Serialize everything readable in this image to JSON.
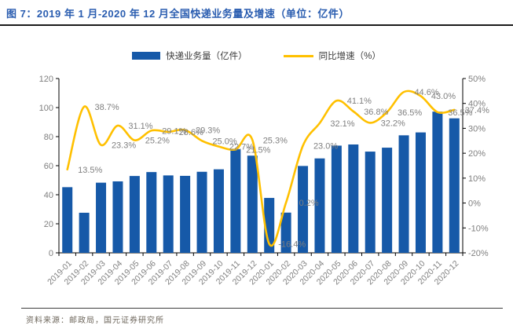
{
  "header": {
    "title": "图 7：2019 年 1 月-2020 年 12 月全国快递业务量及增速（单位：亿件）"
  },
  "legend": {
    "bar_label": "快递业务量（亿件）",
    "line_label": "同比增速（%）"
  },
  "footer": {
    "source": "资料来源：邮政局，国元证券研究所"
  },
  "colors": {
    "bar": "#1659a8",
    "line": "#ffc000",
    "title_text": "#2a5db0",
    "axis_line": "#000000",
    "tick_label": "#7f7f7f",
    "data_label": "#7f7f7f",
    "legend_text": "#3a3a3a"
  },
  "chart_data": {
    "type": "bar",
    "subtype": "bar-line-combo",
    "grid": false,
    "legend_position": "top",
    "categories": [
      "2019-01",
      "2019-02",
      "2019-03",
      "2019-04",
      "2019-05",
      "2019-06",
      "2019-07",
      "2019-08",
      "2019-09",
      "2019-10",
      "2019-11",
      "2019-12",
      "2020-01",
      "2020-02",
      "2020-03",
      "2020-04",
      "2020-05",
      "2020-06",
      "2020-07",
      "2020-08",
      "2020-09",
      "2020-10",
      "2020-11",
      "2020-12"
    ],
    "series": [
      {
        "name": "快递业务量（亿件）",
        "type": "bar",
        "axis": "left",
        "values": [
          45.2,
          27.6,
          48.3,
          49.2,
          52.9,
          55.6,
          53.3,
          53.0,
          55.8,
          57.5,
          71.3,
          66.9,
          37.8,
          27.7,
          59.8,
          65.0,
          73.8,
          74.6,
          69.7,
          72.4,
          80.9,
          82.9,
          97.2,
          92.6
        ]
      },
      {
        "name": "同比增速（%）",
        "type": "line",
        "axis": "right",
        "values": [
          13.5,
          38.7,
          23.3,
          31.1,
          25.2,
          29.1,
          28.6,
          29.3,
          25.0,
          22.7,
          21.5,
          25.3,
          -16.4,
          0.2,
          23.0,
          32.1,
          41.1,
          36.8,
          32.2,
          36.5,
          44.6,
          43.0,
          36.5,
          37.4
        ],
        "point_labels": [
          "13.5%",
          "38.7%",
          "23.3%",
          "31.1%",
          "25.2%",
          "29.1%",
          "28.6%",
          "29.3%",
          "25.0%",
          "22.7%",
          "21.5%",
          "25.3%",
          "-16.4%",
          "0.2%",
          "23.0%",
          "32.1%",
          "41.1%",
          "36.8%",
          "32.2%",
          "36.5%",
          "44.6%",
          "43.0%",
          "36.5%",
          "37.4%"
        ]
      }
    ],
    "left_axis": {
      "ticks": [
        0,
        20,
        40,
        60,
        80,
        100,
        120
      ],
      "min": 0,
      "max": 120
    },
    "right_axis": {
      "tick_labels": [
        "-20%",
        "-10%",
        "0%",
        "10%",
        "20%",
        "30%",
        "40%",
        "50%"
      ],
      "tick_values": [
        -20,
        -10,
        0,
        10,
        20,
        30,
        40,
        50
      ],
      "min": -20,
      "max": 50
    }
  }
}
